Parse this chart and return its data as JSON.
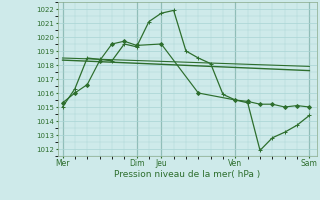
{
  "bg_color": "#ceeaea",
  "grid_color": "#a8d4d4",
  "line_color": "#2d6e2d",
  "xlabel": "Pression niveau de la mer( hPa )",
  "ylim": [
    1011.5,
    1022.5
  ],
  "yticks": [
    1012,
    1013,
    1014,
    1015,
    1016,
    1017,
    1018,
    1019,
    1020,
    1021,
    1022
  ],
  "xtick_labels": [
    "Mer",
    "Dim",
    "Jeu",
    "Ven",
    "Sam"
  ],
  "xtick_positions": [
    0,
    3,
    4,
    7,
    10
  ],
  "vlines_major": [
    0,
    3,
    4,
    7,
    10
  ],
  "xlim": [
    -0.2,
    10.3
  ],
  "series": [
    {
      "x": [
        0,
        0.5,
        1.0,
        1.5,
        2.0,
        2.5,
        3.0,
        3.5,
        4.0,
        4.5,
        5.0,
        5.5,
        6.0,
        6.5,
        7.0,
        7.5,
        8.0,
        8.5,
        9.0,
        9.5,
        10.0
      ],
      "y": [
        1015.0,
        1016.3,
        1018.5,
        1018.4,
        1018.3,
        1019.5,
        1019.3,
        1021.1,
        1021.7,
        1021.9,
        1019.0,
        1018.5,
        1018.1,
        1015.9,
        1015.5,
        1015.3,
        1011.9,
        1012.8,
        1013.2,
        1013.7,
        1014.4
      ],
      "marker": "+",
      "markersize": 3.5,
      "linewidth": 0.9
    },
    {
      "x": [
        0,
        10.0
      ],
      "y": [
        1018.35,
        1017.6
      ],
      "marker": null,
      "markersize": 0,
      "linewidth": 1.0
    },
    {
      "x": [
        0,
        10.0
      ],
      "y": [
        1018.5,
        1017.9
      ],
      "marker": null,
      "markersize": 0,
      "linewidth": 0.8
    },
    {
      "x": [
        0,
        0.5,
        1.0,
        1.5,
        2.0,
        2.5,
        3.0,
        4.0,
        5.5,
        7.0,
        7.5,
        8.0,
        8.5,
        9.0,
        9.5,
        10.0
      ],
      "y": [
        1015.3,
        1016.0,
        1016.6,
        1018.3,
        1019.5,
        1019.7,
        1019.4,
        1019.5,
        1016.0,
        1015.5,
        1015.4,
        1015.2,
        1015.2,
        1015.0,
        1015.1,
        1015.0
      ],
      "marker": "D",
      "markersize": 2.0,
      "linewidth": 0.85
    }
  ]
}
